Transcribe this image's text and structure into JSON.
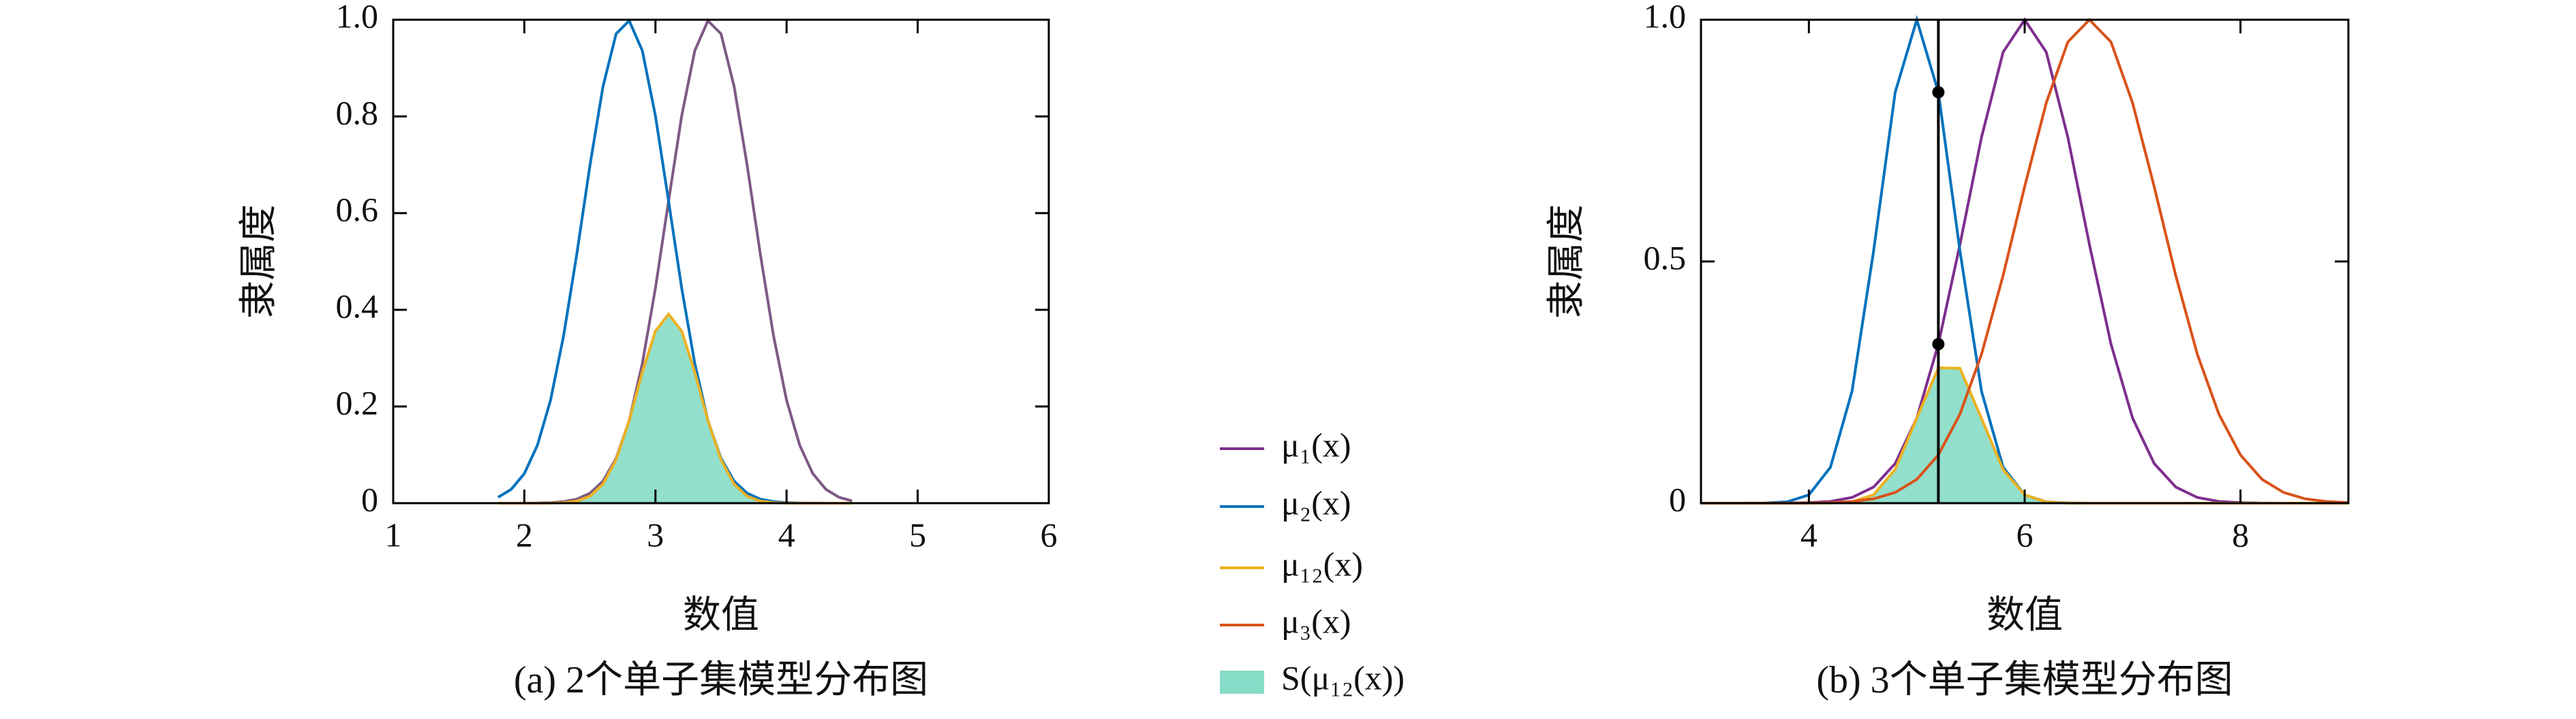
{
  "chart_data": [
    {
      "type": "line",
      "title": "(a) 2个单子集模型分布图",
      "xlabel": "数值",
      "ylabel": "隶属度",
      "xlim": [
        1,
        6
      ],
      "ylim": [
        0,
        1
      ],
      "xticks": [
        1,
        2,
        3,
        4,
        5,
        6
      ],
      "yticks": [
        0,
        0.2,
        0.4,
        0.6,
        0.8,
        {
          "value": 1,
          "label": "1.0"
        }
      ],
      "grid": false,
      "x": [
        1.8,
        1.9,
        2.0,
        2.1,
        2.2,
        2.3,
        2.4,
        2.5,
        2.6,
        2.7,
        2.8,
        2.9,
        3.0,
        3.1,
        3.2,
        3.3,
        3.4,
        3.5,
        3.6,
        3.7,
        3.8,
        3.9,
        4.0,
        4.1,
        4.2,
        4.3,
        4.4,
        4.5
      ],
      "series": [
        {
          "color": "#7e5a86",
          "values": [
            0,
            0,
            0.0001,
            0.0003,
            0.0011,
            0.0032,
            0.0084,
            0.0205,
            0.0456,
            0.0926,
            0.171,
            0.289,
            0.445,
            0.625,
            0.801,
            0.936,
            0.998,
            0.971,
            0.862,
            0.698,
            0.515,
            0.347,
            0.213,
            0.12,
            0.0612,
            0.0286,
            0.0122,
            0.0047
          ]
        },
        {
          "color": "#0072bd",
          "values": [
            0.0122,
            0.0286,
            0.0612,
            0.12,
            0.213,
            0.347,
            0.515,
            0.698,
            0.862,
            0.971,
            0.998,
            0.936,
            0.801,
            0.625,
            0.445,
            0.289,
            0.171,
            0.0926,
            0.0456,
            0.0205,
            0.0084,
            0.0032,
            0.0011,
            0.0003,
            0.0001,
            0,
            0,
            0
          ]
        },
        {
          "color": "#edb120",
          "values": [
            0,
            0,
            0,
            0,
            0.0002,
            0.0011,
            0.0043,
            0.0143,
            0.0393,
            0.0899,
            0.171,
            0.271,
            0.356,
            0.391,
            0.356,
            0.271,
            0.171,
            0.0899,
            0.0393,
            0.0143,
            0.0043,
            0.0011,
            0.0002,
            0,
            0,
            0,
            0,
            0
          ]
        }
      ],
      "area": {
        "name": "S(μ₁₂(x))",
        "color": "#86dcc6",
        "series": 2
      }
    },
    {
      "type": "line",
      "title": "(b) 3个单子集模型分布图",
      "xlabel": "数值",
      "ylabel": "隶属度",
      "xlim": [
        3,
        9
      ],
      "ylim": [
        0,
        1
      ],
      "xticks": [
        4,
        6,
        8
      ],
      "yticks": [
        0,
        0.5,
        {
          "value": 1,
          "label": "1.0"
        }
      ],
      "grid": false,
      "x": [
        3.0,
        3.2,
        3.4,
        3.6,
        3.8,
        4.0,
        4.2,
        4.4,
        4.6,
        4.8,
        5.0,
        5.2,
        5.4,
        5.6,
        5.8,
        6.0,
        6.2,
        6.4,
        6.6,
        6.8,
        7.0,
        7.2,
        7.4,
        7.6,
        7.8,
        8.0,
        8.2,
        8.4,
        8.6,
        8.8,
        9.0
      ],
      "series": [
        {
          "name": "μ₁(x)",
          "color": "#7e2f8e",
          "values": [
            0,
            0,
            0,
            0,
            0.0002,
            0.001,
            0.0036,
            0.0118,
            0.0333,
            0.0821,
            0.176,
            0.329,
            0.535,
            0.757,
            0.933,
            1,
            0.933,
            0.757,
            0.535,
            0.329,
            0.176,
            0.0821,
            0.0333,
            0.0118,
            0.0036,
            0.001,
            0.0002,
            0,
            0,
            0,
            0
          ]
        },
        {
          "name": "μ₂(x)",
          "color": "#0072bd",
          "values": [
            0,
            0,
            0,
            0.0003,
            0.0029,
            0.0171,
            0.0743,
            0.2315,
            0.522,
            0.85,
            1,
            0.85,
            0.522,
            0.2315,
            0.0743,
            0.0171,
            0.0029,
            0.0003,
            0,
            0,
            0,
            0,
            0,
            0,
            0,
            0,
            0,
            0,
            0,
            0,
            0
          ]
        },
        {
          "name": "μ₁₂(x)",
          "color": "#edb120",
          "values": [
            0,
            0,
            0,
            0,
            0,
            0,
            0.0003,
            0.0027,
            0.0174,
            0.0698,
            0.176,
            0.28,
            0.279,
            0.175,
            0.0693,
            0.0171,
            0.0027,
            0.0002,
            0,
            0,
            0,
            0,
            0,
            0,
            0,
            0,
            0,
            0,
            0,
            0,
            0
          ]
        },
        {
          "name": "μ₃(x)",
          "color": "#d95319",
          "values": [
            0,
            0,
            0,
            0,
            0.0001,
            0.0004,
            0.0011,
            0.0034,
            0.009,
            0.0221,
            0.0492,
            0.0997,
            0.184,
            0.308,
            0.471,
            0.655,
            0.828,
            0.954,
            1,
            0.954,
            0.828,
            0.655,
            0.471,
            0.308,
            0.184,
            0.0997,
            0.0492,
            0.0221,
            0.009,
            0.0034,
            0.0011
          ]
        }
      ],
      "area": {
        "color": "#86dcc6",
        "series": 2
      },
      "vline": {
        "x": 5.2,
        "points": [
          0.85,
          0.329
        ],
        "color": "#000000"
      }
    }
  ]
}
